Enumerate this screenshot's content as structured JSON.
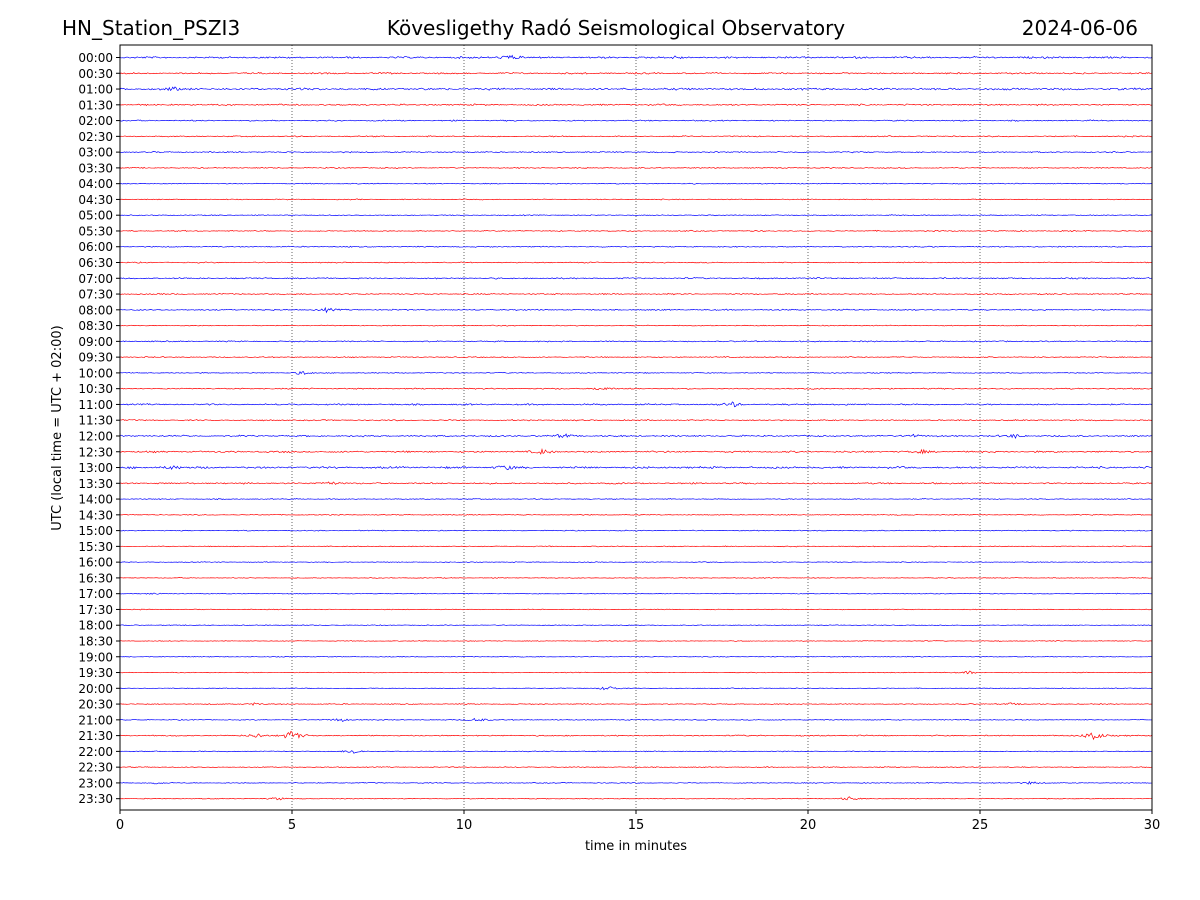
{
  "header": {
    "station": "HN_Station_PSZI3",
    "observatory": "Kövesligethy Radó Seismological Observatory",
    "date": "2024-06-06"
  },
  "chart_data": {
    "type": "line",
    "title": "Kövesligethy Radó Seismological Observatory",
    "xlabel": "time in minutes",
    "ylabel": "UTC (local time = UTC + 02:00)",
    "xlim": [
      0,
      30
    ],
    "xticks": [
      0,
      5,
      10,
      15,
      20,
      25,
      30
    ],
    "grid_x": [
      5,
      10,
      15,
      20,
      25
    ],
    "row_labels": [
      "00:00",
      "00:30",
      "01:00",
      "01:30",
      "02:00",
      "02:30",
      "03:00",
      "03:30",
      "04:00",
      "04:30",
      "05:00",
      "05:30",
      "06:00",
      "06:30",
      "07:00",
      "07:30",
      "08:00",
      "08:30",
      "09:00",
      "09:30",
      "10:00",
      "10:30",
      "11:00",
      "11:30",
      "12:00",
      "12:30",
      "13:00",
      "13:30",
      "14:00",
      "14:30",
      "15:00",
      "15:30",
      "16:00",
      "16:30",
      "17:00",
      "17:30",
      "18:00",
      "18:30",
      "19:00",
      "19:30",
      "20:00",
      "20:30",
      "21:00",
      "21:30",
      "22:00",
      "22:30",
      "23:00",
      "23:30"
    ],
    "series_colors": [
      "#0000ff",
      "#ff0000"
    ],
    "noise_level": [
      1.2,
      1.0,
      1.3,
      1.0,
      0.8,
      0.8,
      0.8,
      0.7,
      0.6,
      0.6,
      0.6,
      0.7,
      0.7,
      0.7,
      0.9,
      0.8,
      0.8,
      0.6,
      0.8,
      0.7,
      0.6,
      0.8,
      1.0,
      0.8,
      1.0,
      1.1,
      1.3,
      1.0,
      0.6,
      0.6,
      0.6,
      0.6,
      0.5,
      0.5,
      0.5,
      0.5,
      0.5,
      0.5,
      0.5,
      0.5,
      0.5,
      0.6,
      0.6,
      0.8,
      0.6,
      0.6,
      0.6,
      0.5
    ],
    "events": [
      {
        "row": "00:00",
        "minute": 11.3,
        "amplitude": 3.0
      },
      {
        "row": "00:00",
        "minute": 16.2,
        "amplitude": 1.5
      },
      {
        "row": "01:00",
        "minute": 1.5,
        "amplitude": 1.8
      },
      {
        "row": "08:00",
        "minute": 6.0,
        "amplitude": 1.8
      },
      {
        "row": "10:00",
        "minute": 5.3,
        "amplitude": 2.2
      },
      {
        "row": "10:30",
        "minute": 14.0,
        "amplitude": 2.0
      },
      {
        "row": "11:00",
        "minute": 17.8,
        "amplitude": 2.5
      },
      {
        "row": "12:00",
        "minute": 12.9,
        "amplitude": 2.0
      },
      {
        "row": "12:00",
        "minute": 23.0,
        "amplitude": 2.0
      },
      {
        "row": "12:00",
        "minute": 26.0,
        "amplitude": 2.0
      },
      {
        "row": "12:30",
        "minute": 12.3,
        "amplitude": 2.5
      },
      {
        "row": "12:30",
        "minute": 23.3,
        "amplitude": 1.5
      },
      {
        "row": "13:00",
        "minute": 11.2,
        "amplitude": 2.5
      },
      {
        "row": "13:00",
        "minute": 1.5,
        "amplitude": 2.0
      },
      {
        "row": "13:30",
        "minute": 6.1,
        "amplitude": 2.0
      },
      {
        "row": "17:00",
        "minute": 1.0,
        "amplitude": 1.0
      },
      {
        "row": "19:30",
        "minute": 24.7,
        "amplitude": 1.5
      },
      {
        "row": "20:00",
        "minute": 14.2,
        "amplitude": 2.5
      },
      {
        "row": "20:30",
        "minute": 3.9,
        "amplitude": 1.2
      },
      {
        "row": "20:30",
        "minute": 25.9,
        "amplitude": 1.2
      },
      {
        "row": "21:00",
        "minute": 6.4,
        "amplitude": 2.0
      },
      {
        "row": "21:00",
        "minute": 10.4,
        "amplitude": 2.5
      },
      {
        "row": "21:30",
        "minute": 5.0,
        "amplitude": 6.0
      },
      {
        "row": "21:30",
        "minute": 4.0,
        "amplitude": 2.5
      },
      {
        "row": "21:30",
        "minute": 28.3,
        "amplitude": 6.0
      },
      {
        "row": "22:00",
        "minute": 6.8,
        "amplitude": 2.5
      },
      {
        "row": "23:00",
        "minute": 26.5,
        "amplitude": 2.0
      },
      {
        "row": "23:00",
        "minute": 1.0,
        "amplitude": 1.2
      },
      {
        "row": "23:30",
        "minute": 21.2,
        "amplitude": 2.0
      },
      {
        "row": "23:30",
        "minute": 4.6,
        "amplitude": 1.5
      }
    ]
  }
}
